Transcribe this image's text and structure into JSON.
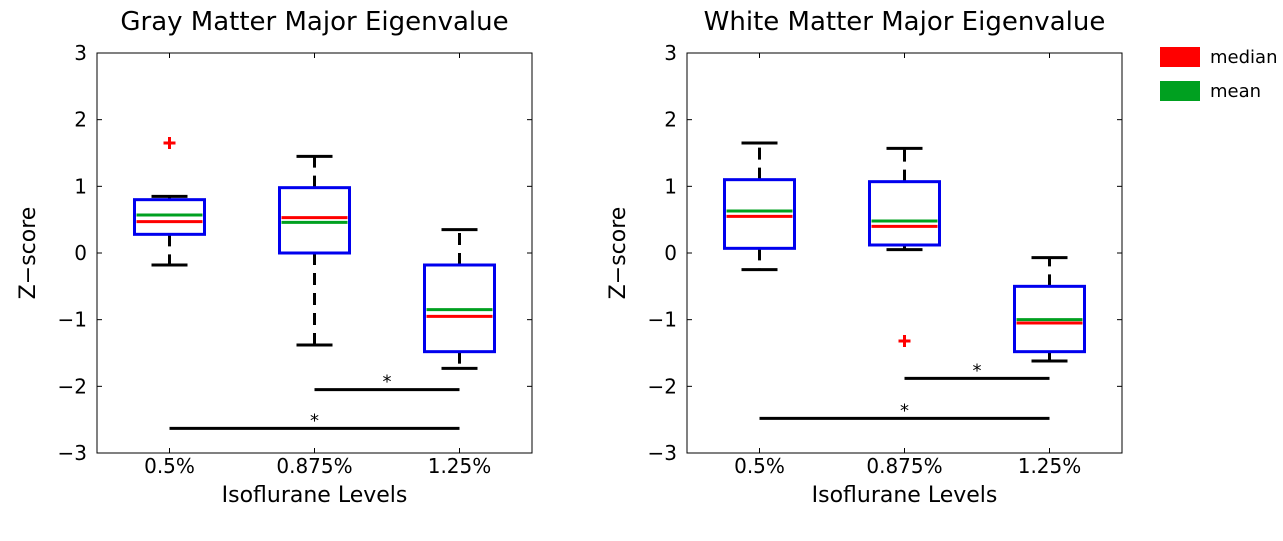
{
  "legend": [
    {
      "label": "median",
      "color": "#ff0000"
    },
    {
      "label": "mean",
      "color": "#00a020"
    }
  ],
  "colors": {
    "box": "#0000ee",
    "median": "#ff0000",
    "mean": "#00a020",
    "whisker": "#000000",
    "outlier": "#ff0000"
  },
  "chart_data": [
    {
      "type": "box",
      "title": "Gray Matter Major Eigenvalue",
      "xlabel": "Isoflurane Levels",
      "ylabel": "Z−score",
      "ylim": [
        -3,
        3
      ],
      "yticks": [
        3,
        2,
        1,
        0,
        -1,
        -2,
        -3
      ],
      "ytick_labels": [
        "3",
        "2",
        "1",
        "0",
        "−1",
        "−2",
        "−3"
      ],
      "categories": [
        "0.5%",
        "0.875%",
        "1.25%"
      ],
      "boxes": [
        {
          "whisker_low": -0.18,
          "q1": 0.28,
          "median": 0.47,
          "mean": 0.57,
          "q3": 0.8,
          "whisker_high": 0.85,
          "outliers": [
            1.65
          ]
        },
        {
          "whisker_low": -1.38,
          "q1": 0.0,
          "median": 0.53,
          "mean": 0.46,
          "q3": 0.98,
          "whisker_high": 1.45,
          "outliers": []
        },
        {
          "whisker_low": -1.73,
          "q1": -1.48,
          "median": -0.95,
          "mean": -0.85,
          "q3": -0.18,
          "whisker_high": 0.35,
          "outliers": []
        }
      ],
      "significance": [
        {
          "from": 2,
          "to": 3,
          "y": -2.05,
          "label": "*"
        },
        {
          "from": 1,
          "to": 3,
          "y": -2.63,
          "label": "*"
        }
      ]
    },
    {
      "type": "box",
      "title": "White Matter Major Eigenvalue",
      "xlabel": "Isoflurane Levels",
      "ylabel": "Z−score",
      "ylim": [
        -3,
        3
      ],
      "yticks": [
        3,
        2,
        1,
        0,
        -1,
        -2,
        -3
      ],
      "ytick_labels": [
        "3",
        "2",
        "1",
        "0",
        "−1",
        "−2",
        "−3"
      ],
      "categories": [
        "0.5%",
        "0.875%",
        "1.25%"
      ],
      "boxes": [
        {
          "whisker_low": -0.25,
          "q1": 0.07,
          "median": 0.55,
          "mean": 0.63,
          "q3": 1.1,
          "whisker_high": 1.65,
          "outliers": []
        },
        {
          "whisker_low": 0.05,
          "q1": 0.12,
          "median": 0.4,
          "mean": 0.48,
          "q3": 1.07,
          "whisker_high": 1.57,
          "outliers": [
            -1.32
          ]
        },
        {
          "whisker_low": -1.62,
          "q1": -1.48,
          "median": -1.05,
          "mean": -1.0,
          "q3": -0.5,
          "whisker_high": -0.07,
          "outliers": []
        }
      ],
      "significance": [
        {
          "from": 2,
          "to": 3,
          "y": -1.88,
          "label": "*"
        },
        {
          "from": 1,
          "to": 3,
          "y": -2.48,
          "label": "*"
        }
      ]
    }
  ]
}
